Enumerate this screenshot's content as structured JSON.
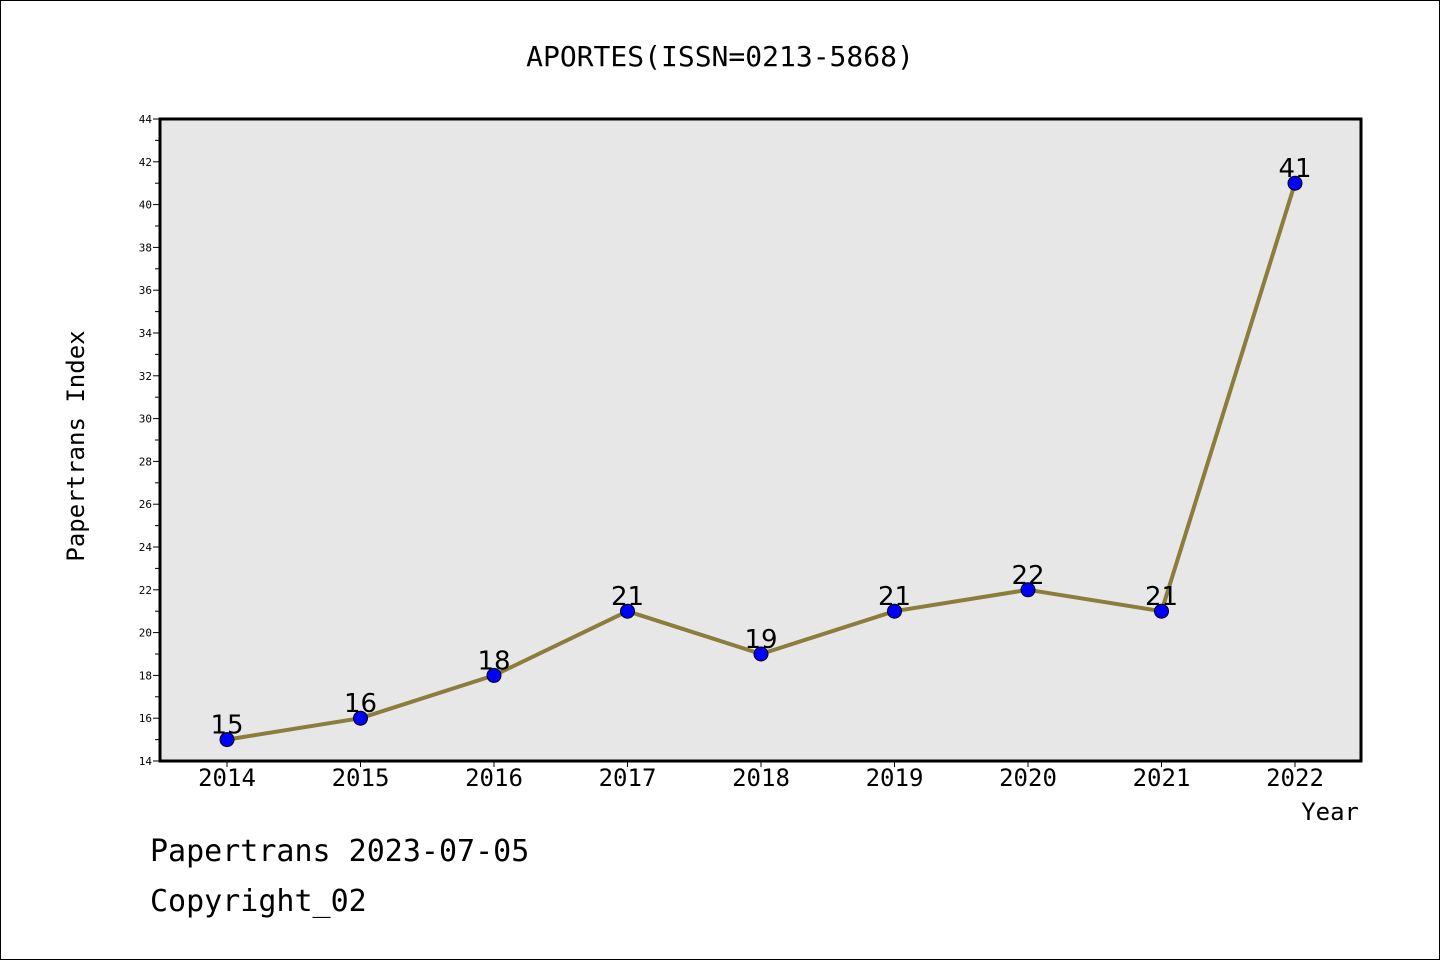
{
  "chart_data": {
    "type": "line",
    "title": "APORTES(ISSN=0213-5868)",
    "xlabel": "Year",
    "ylabel": "Papertrans Index",
    "categories": [
      "2014",
      "2015",
      "2016",
      "2017",
      "2018",
      "2019",
      "2020",
      "2021",
      "2022"
    ],
    "series": [
      {
        "values": [
          15,
          16,
          18,
          21,
          19,
          21,
          22,
          21,
          41
        ]
      }
    ],
    "ylim": [
      14,
      44
    ],
    "yticks": [
      "14",
      "16",
      "18",
      "20",
      "22",
      "24",
      "26",
      "28",
      "30",
      "32",
      "34",
      "36",
      "38",
      "40",
      "42",
      "44"
    ],
    "grid": false,
    "legend": "none",
    "colors": {
      "line": "#8b7d3a",
      "marker": "#0000ff",
      "plot_bg": "#e7e7e7",
      "frame": "#000000"
    }
  },
  "footer": {
    "line1": "Papertrans 2023-07-05",
    "line2": "Copyright_02"
  }
}
